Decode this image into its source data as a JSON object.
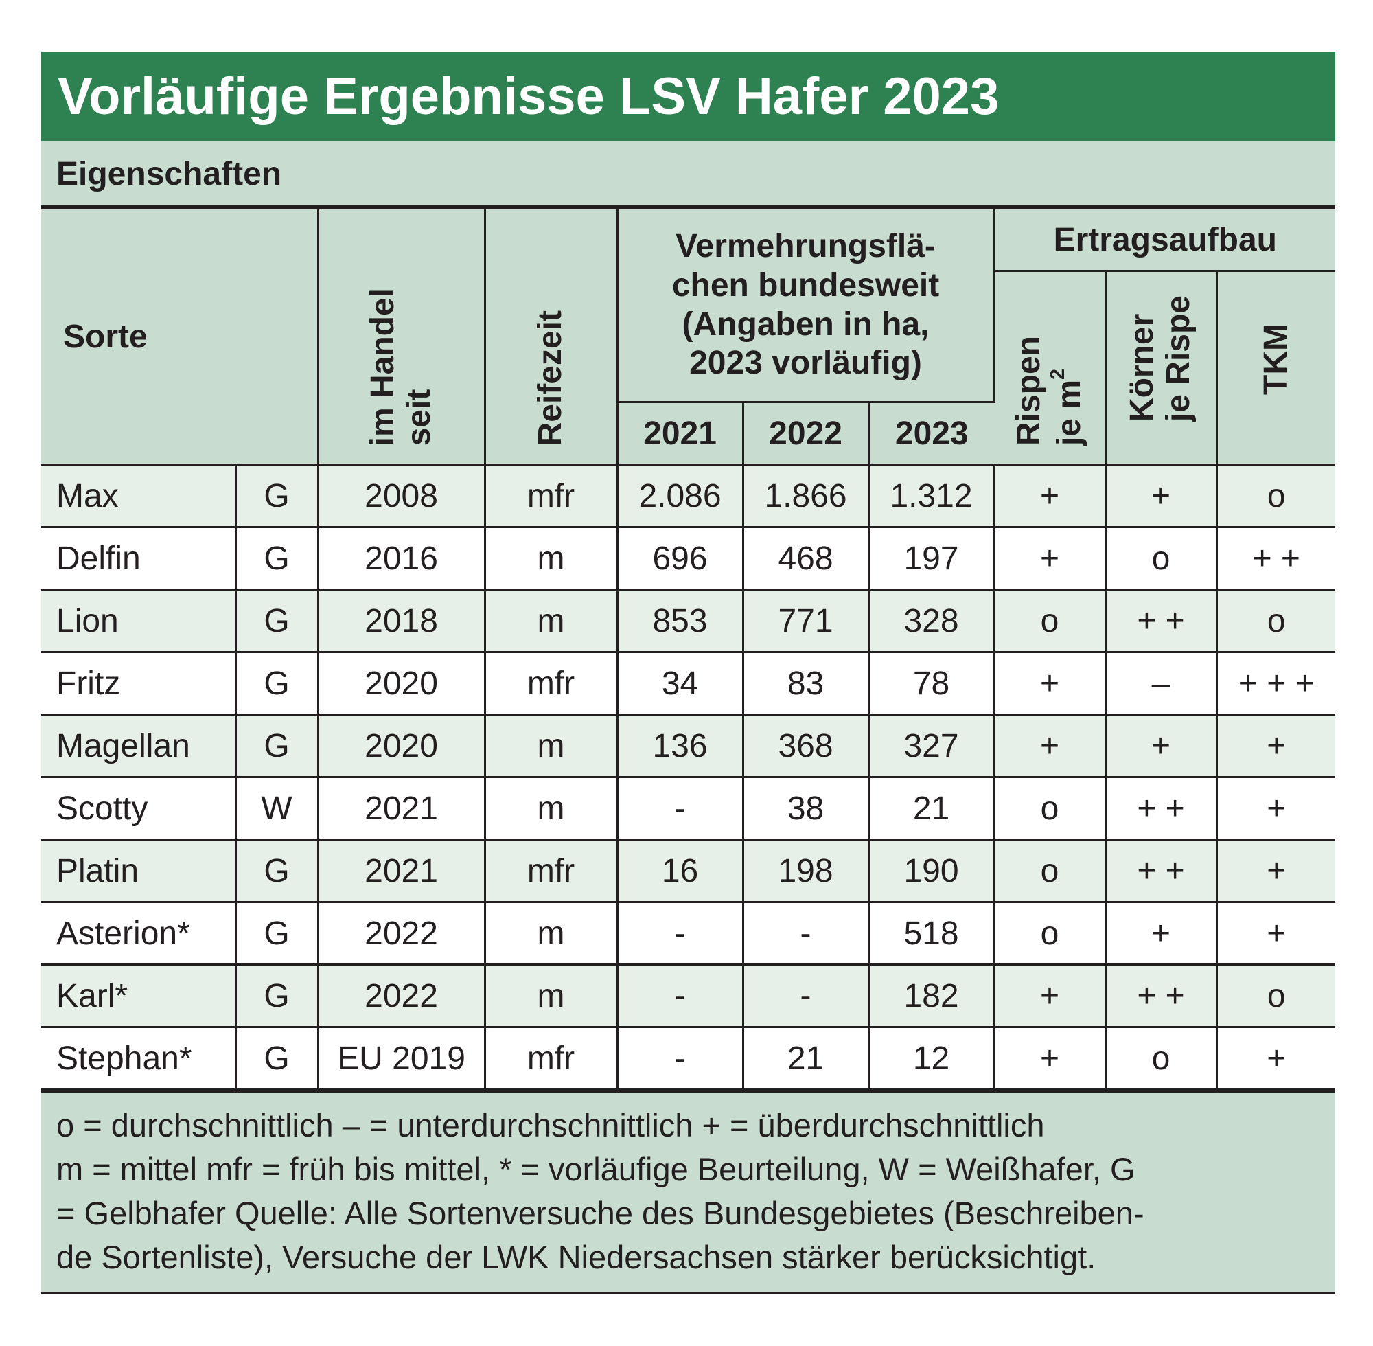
{
  "title": "Vorläufige Ergebnisse LSV Hafer 2023",
  "subtitle": "Eigenschaften",
  "header": {
    "sorte": "Sorte",
    "handel": "im Handel\nseit",
    "reifezeit": "Reifezeit",
    "vermehrung": "Vermehrungsflä-\nchen bundesweit\n(Angaben in ha,\n2023 vorläufig)",
    "years": [
      "2021",
      "2022",
      "2023"
    ],
    "ertrag": "Ertragsaufbau",
    "rispen_line1": "Rispen",
    "rispen_line2": "je m",
    "rispen_sup": "2",
    "koerner": "Körner\nje Rispe",
    "tkm": "TKM"
  },
  "rows": [
    {
      "name": "Max",
      "typ": "G",
      "seit": "2008",
      "reife": "mfr",
      "v2021": "2.086",
      "v2022": "1.866",
      "v2023": "1.312",
      "rispen": "+",
      "koerner": "+",
      "tkm": "o"
    },
    {
      "name": "Delfin",
      "typ": "G",
      "seit": "2016",
      "reife": "m",
      "v2021": "696",
      "v2022": "468",
      "v2023": "197",
      "rispen": "+",
      "koerner": "o",
      "tkm": "+ +"
    },
    {
      "name": "Lion",
      "typ": "G",
      "seit": "2018",
      "reife": "m",
      "v2021": "853",
      "v2022": "771",
      "v2023": "328",
      "rispen": "o",
      "koerner": "+ +",
      "tkm": "o"
    },
    {
      "name": "Fritz",
      "typ": "G",
      "seit": "2020",
      "reife": "mfr",
      "v2021": "34",
      "v2022": "83",
      "v2023": "78",
      "rispen": "+",
      "koerner": "–",
      "tkm": "+ + +"
    },
    {
      "name": "Magellan",
      "typ": "G",
      "seit": "2020",
      "reife": "m",
      "v2021": "136",
      "v2022": "368",
      "v2023": "327",
      "rispen": "+",
      "koerner": "+",
      "tkm": "+"
    },
    {
      "name": "Scotty",
      "typ": "W",
      "seit": "2021",
      "reife": "m",
      "v2021": "-",
      "v2022": "38",
      "v2023": "21",
      "rispen": "o",
      "koerner": "+ +",
      "tkm": "+"
    },
    {
      "name": "Platin",
      "typ": "G",
      "seit": "2021",
      "reife": "mfr",
      "v2021": "16",
      "v2022": "198",
      "v2023": "190",
      "rispen": "o",
      "koerner": "+ +",
      "tkm": "+"
    },
    {
      "name": "Asterion*",
      "typ": "G",
      "seit": "2022",
      "reife": "m",
      "v2021": "-",
      "v2022": "-",
      "v2023": "518",
      "rispen": "o",
      "koerner": "+",
      "tkm": "+"
    },
    {
      "name": "Karl*",
      "typ": "G",
      "seit": "2022",
      "reife": "m",
      "v2021": "-",
      "v2022": "-",
      "v2023": "182",
      "rispen": "+",
      "koerner": "+ +",
      "tkm": "o"
    },
    {
      "name": "Stephan*",
      "typ": "G",
      "seit": "EU 2019",
      "reife": "mfr",
      "v2021": "-",
      "v2022": "21",
      "v2023": "12",
      "rispen": "+",
      "koerner": "o",
      "tkm": "+"
    }
  ],
  "footer": [
    "o = durchschnittlich    – = unterdurchschnittlich    + = überdurchschnittlich",
    "m = mittel   mfr = früh bis mittel, * = vorläufige Beurteilung, W = Weißhafer, G",
    "= Gelbhafer   Quelle: Alle Sortenversuche des Bundesgebietes (Beschreiben-",
    "de Sortenliste), Versuche der LWK Niedersachsen stärker berücksichtigt."
  ]
}
